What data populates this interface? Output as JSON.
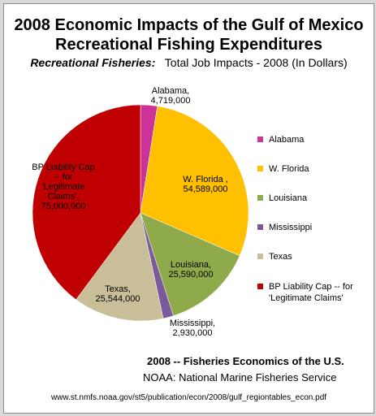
{
  "title_line1": "2008 Economic Impacts of the Gulf of Mexico",
  "title_line2": "Recreational Fishing Expenditures",
  "subtitle_lead": "Recreational Fisheries:",
  "subtitle_rest": "Total Job Impacts - 2008   (In Dollars)",
  "source_line1": "2008  -- Fisheries Economics of the U.S.",
  "source_line2": "NOAA: National Marine Fisheries Service",
  "source_url": "www.st.nmfs.noaa.gov/st5/publication/econ/2008/gulf_regiontables_econ.pdf",
  "chart_data": {
    "type": "pie",
    "title": "2008 Economic Impacts of the Gulf of Mexico Recreational Fishing Expenditures",
    "subtitle": "Recreational Fisheries: Total Job Impacts - 2008 (In Dollars)",
    "legend_position": "right",
    "slices": [
      {
        "legend": "Alabama",
        "label": "Alabama,\n4,719,000",
        "value": 4719000,
        "color": "#cc3399"
      },
      {
        "legend": "W. Florida",
        "label": "W. Florida ,\n54,589,000",
        "value": 54589000,
        "color": "#ffc000"
      },
      {
        "legend": "Louisiana",
        "label": "Louisiana,\n25,590,000",
        "value": 25590000,
        "color": "#8faa4a"
      },
      {
        "legend": "Mississippi",
        "label": "Mississippi,\n2,930,000",
        "value": 2930000,
        "color": "#7a5a9a"
      },
      {
        "legend": "Texas",
        "label": "Texas,\n25,544,000",
        "value": 25544000,
        "color": "#c8bf99"
      },
      {
        "legend": "BP Liability Cap -- for\n'Legitimate Claims'",
        "label": "BP Liability Cap\n-- for\n'Legitimate\nClaims',\n75,000,000",
        "value": 75000000,
        "color": "#c00000"
      }
    ]
  }
}
